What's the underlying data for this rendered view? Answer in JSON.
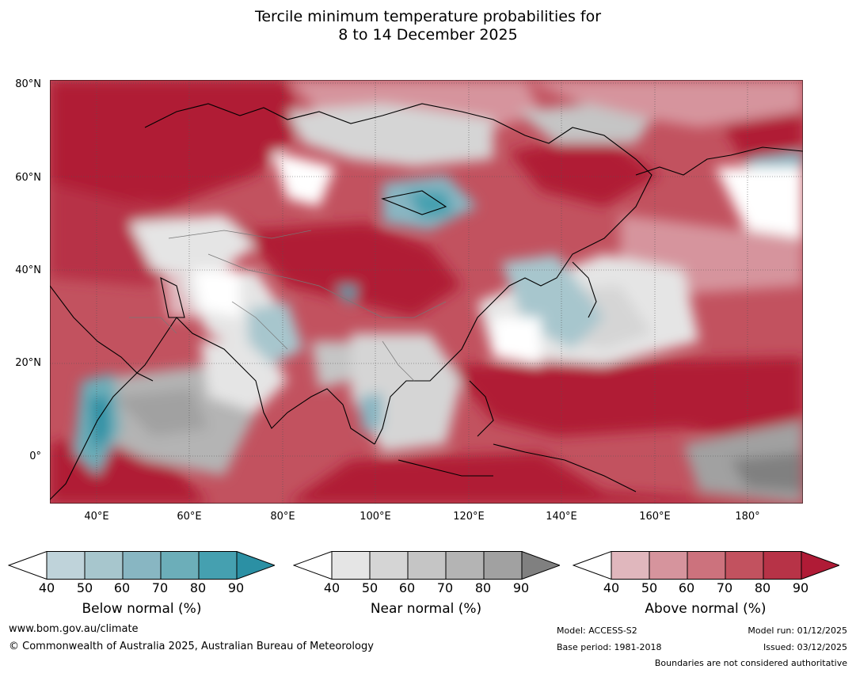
{
  "title": {
    "line1": "Tercile minimum temperature probabilities for",
    "line2": "8 to 14 December 2025"
  },
  "map": {
    "region": "Asia and western Pacific",
    "lat_labels": [
      "80°N",
      "60°N",
      "40°N",
      "20°N",
      "0°"
    ],
    "lon_labels": [
      "40°E",
      "60°E",
      "80°E",
      "100°E",
      "120°E",
      "140°E",
      "160°E",
      "180°"
    ]
  },
  "colorbars": [
    {
      "name": "below",
      "title": "Below normal (%)",
      "ticks": [
        "40",
        "50",
        "60",
        "70",
        "80",
        "90"
      ],
      "colors": [
        "#ffffff",
        "#bfd3da",
        "#a7c6cd",
        "#88b6c2",
        "#6caeb9",
        "#45a0b0",
        "#2b90a4"
      ]
    },
    {
      "name": "near",
      "title": "Near normal (%)",
      "ticks": [
        "40",
        "50",
        "60",
        "70",
        "80",
        "90"
      ],
      "colors": [
        "#ffffff",
        "#e5e5e5",
        "#d5d5d5",
        "#c5c5c5",
        "#b4b4b4",
        "#a1a1a1",
        "#808080"
      ]
    },
    {
      "name": "above",
      "title": "Above normal (%)",
      "ticks": [
        "40",
        "50",
        "60",
        "70",
        "80",
        "90"
      ],
      "colors": [
        "#ffffff",
        "#e0b7bd",
        "#d6949d",
        "#cc727d",
        "#c2525f",
        "#b73347",
        "#b01b36"
      ]
    }
  ],
  "footer": {
    "url": "www.bom.gov.au/climate",
    "copyright": "© Commonwealth of Australia 2025, Australian Bureau of Meteorology",
    "model": "Model: ACCESS-S2",
    "base_period": "Base period: 1981-2018",
    "model_run": "Model run: 01/12/2025",
    "issued": "Issued: 03/12/2025",
    "boundaries": "Boundaries are not considered authoritative"
  }
}
